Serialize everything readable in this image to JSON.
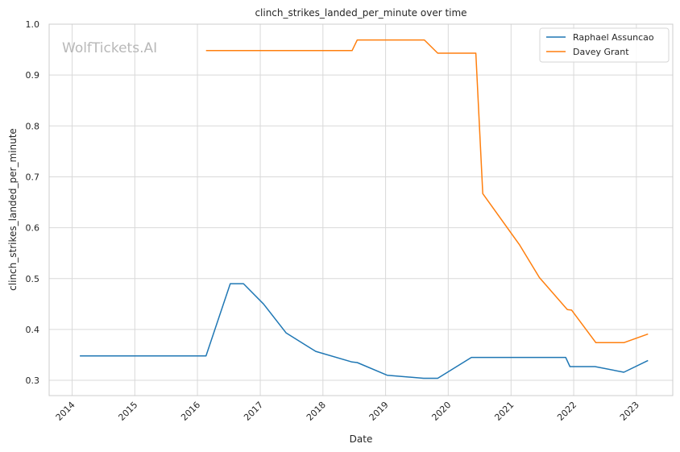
{
  "chart_data": {
    "type": "line",
    "title": "clinch_strikes_landed_per_minute over time",
    "xlabel": "Date",
    "ylabel": "clinch_strikes_landed_per_minute",
    "watermark": "WolfTickets.AI",
    "xlim": [
      "2013-08-20",
      "2023-08-01"
    ],
    "ylim": [
      0.27,
      1.0
    ],
    "x_ticks": [
      "2014",
      "2015",
      "2016",
      "2017",
      "2018",
      "2019",
      "2020",
      "2021",
      "2022",
      "2023"
    ],
    "y_ticks": [
      "0.3",
      "0.4",
      "0.5",
      "0.6",
      "0.7",
      "0.8",
      "0.9",
      "1.0"
    ],
    "grid": true,
    "legend_position": "top-right",
    "series": [
      {
        "name": "Raphael Assuncao",
        "color": "#1f77b4",
        "points": [
          [
            "2014-02-15",
            0.348
          ],
          [
            "2016-02-20",
            0.348
          ],
          [
            "2016-07-10",
            0.49
          ],
          [
            "2016-09-25",
            0.49
          ],
          [
            "2017-01-20",
            0.45
          ],
          [
            "2017-06-01",
            0.393
          ],
          [
            "2017-11-20",
            0.357
          ],
          [
            "2018-06-20",
            0.336
          ],
          [
            "2018-07-20",
            0.335
          ],
          [
            "2019-01-10",
            0.31
          ],
          [
            "2019-08-10",
            0.304
          ],
          [
            "2019-11-01",
            0.304
          ],
          [
            "2020-05-15",
            0.345
          ],
          [
            "2021-11-15",
            0.345
          ],
          [
            "2021-12-10",
            0.327
          ],
          [
            "2022-05-05",
            0.327
          ],
          [
            "2022-10-20",
            0.316
          ],
          [
            "2023-03-10",
            0.339
          ]
        ]
      },
      {
        "name": "Davey Grant",
        "color": "#ff7f0e",
        "points": [
          [
            "2016-02-20",
            0.948
          ],
          [
            "2018-06-20",
            0.948
          ],
          [
            "2018-07-20",
            0.969
          ],
          [
            "2019-08-15",
            0.969
          ],
          [
            "2019-11-01",
            0.943
          ],
          [
            "2020-06-10",
            0.943
          ],
          [
            "2020-07-20",
            0.667
          ],
          [
            "2021-02-20",
            0.566
          ],
          [
            "2021-06-15",
            0.502
          ],
          [
            "2021-11-25",
            0.439
          ],
          [
            "2021-12-20",
            0.438
          ],
          [
            "2022-05-10",
            0.374
          ],
          [
            "2022-10-20",
            0.374
          ],
          [
            "2023-03-10",
            0.391
          ]
        ]
      }
    ]
  }
}
